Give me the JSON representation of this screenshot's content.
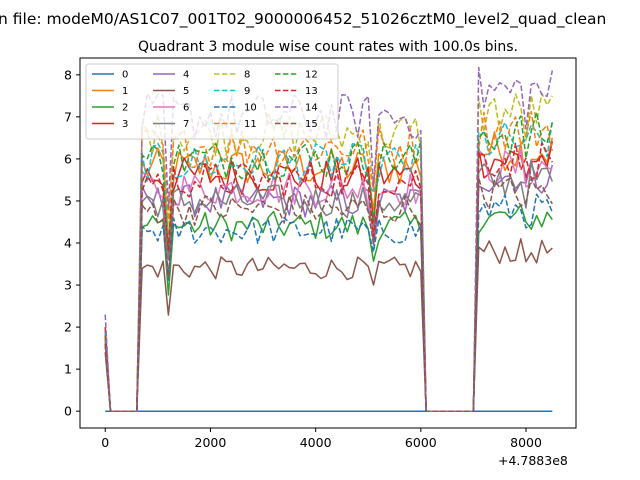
{
  "chart_data": {
    "type": "line",
    "suptitle": "n file: modeM0/AS1C07_001T02_9000006452_51026cztM0_level2_quad_clean",
    "title": "Quadrant 3 module wise count rates with 100.0s bins.",
    "xlabel": "",
    "ylabel": "",
    "x_offset_label": "+4.7883e8",
    "xlim": [
      -480,
      8950
    ],
    "ylim": [
      -0.4,
      8.4
    ],
    "x_ticks": [
      0,
      2000,
      4000,
      6000,
      8000
    ],
    "x_tick_labels": [
      "0",
      "2000",
      "4000",
      "6000",
      "8000"
    ],
    "y_ticks": [
      0,
      1,
      2,
      3,
      4,
      5,
      6,
      7,
      8
    ],
    "y_tick_labels": [
      "0",
      "1",
      "2",
      "3",
      "4",
      "5",
      "6",
      "7",
      "8"
    ],
    "legend_position": "top-left",
    "legend_columns": 4,
    "series_styles": [
      {
        "name": "0",
        "color": "#1f77b4",
        "dash": "solid"
      },
      {
        "name": "1",
        "color": "#ff7f0e",
        "dash": "solid"
      },
      {
        "name": "2",
        "color": "#2ca02c",
        "dash": "solid"
      },
      {
        "name": "3",
        "color": "#d62728",
        "dash": "solid"
      },
      {
        "name": "4",
        "color": "#9467bd",
        "dash": "solid"
      },
      {
        "name": "5",
        "color": "#8c564b",
        "dash": "solid"
      },
      {
        "name": "6",
        "color": "#e377c2",
        "dash": "solid"
      },
      {
        "name": "7",
        "color": "#7f7f7f",
        "dash": "solid"
      },
      {
        "name": "8",
        "color": "#bcbd22",
        "dash": "dashed"
      },
      {
        "name": "9",
        "color": "#17becf",
        "dash": "dashed"
      },
      {
        "name": "10",
        "color": "#1f77b4",
        "dash": "dashed"
      },
      {
        "name": "11",
        "color": "#ff7f0e",
        "dash": "dashed"
      },
      {
        "name": "12",
        "color": "#2ca02c",
        "dash": "dashed"
      },
      {
        "name": "13",
        "color": "#d62728",
        "dash": "dashed"
      },
      {
        "name": "14",
        "color": "#9467bd",
        "dash": "dashed"
      },
      {
        "name": "15",
        "color": "#8c564b",
        "dash": "dashed"
      }
    ],
    "segments": [
      {
        "x_start": 0,
        "x_end": 600,
        "levels": [
          0,
          0,
          0,
          0,
          0,
          0,
          0,
          0,
          0,
          0,
          0,
          0,
          0,
          0,
          0,
          0
        ],
        "start_levels": [
          0,
          1.8,
          1.7,
          1.6,
          1.9,
          1.4,
          1.8,
          1.7,
          2.0,
          1.9,
          1.6,
          1.8,
          1.8,
          2.0,
          2.3,
          1.6
        ]
      },
      {
        "x_start": 700,
        "x_end": 6000,
        "levels": [
          0,
          5.8,
          4.4,
          5.6,
          5.0,
          3.4,
          5.3,
          5.0,
          6.6,
          5.9,
          4.3,
          6.3,
          6.0,
          5.5,
          7.0,
          4.8
        ]
      },
      {
        "x_start": 6100,
        "x_end": 7000,
        "levels": [
          0,
          0,
          0,
          0,
          0,
          0,
          0,
          0,
          0,
          0,
          0,
          0,
          0,
          0,
          0,
          0
        ]
      },
      {
        "x_start": 7100,
        "x_end": 8550,
        "levels": [
          0,
          6.2,
          4.6,
          6.0,
          5.6,
          3.8,
          5.8,
          5.5,
          7.1,
          6.4,
          4.8,
          6.7,
          6.6,
          6.0,
          7.6,
          5.2
        ]
      }
    ],
    "bin_width": 100,
    "dips": [
      {
        "x": 1200,
        "factor": 0.68
      },
      {
        "x": 5100,
        "factor": 0.82
      },
      {
        "x": 8000,
        "factor": 0.95
      }
    ]
  }
}
